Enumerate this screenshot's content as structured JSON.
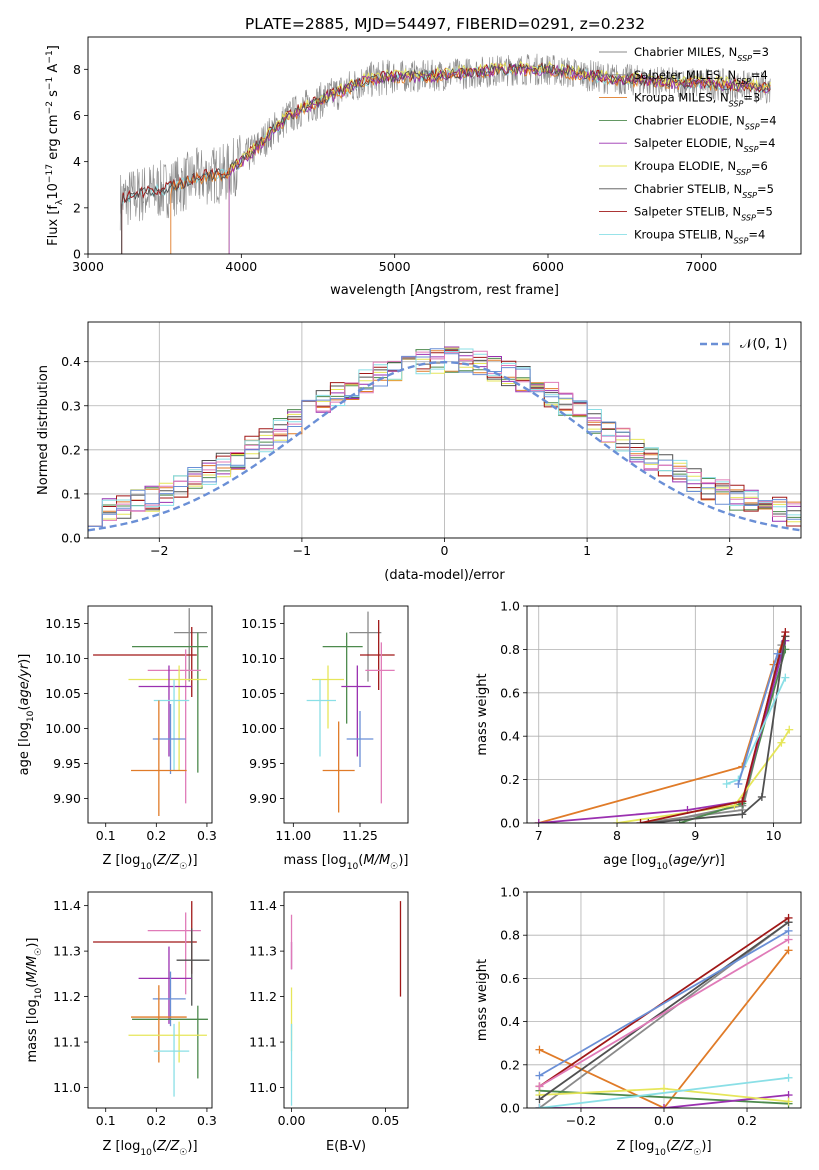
{
  "figure_title": "PLATE=2885, MJD=54497, FIBERID=0291, z=0.232",
  "colors": {
    "Chabrier MILES": "#8a8a8a",
    "Salpeter MILES": "#8a8a8a",
    "Kroupa MILES": "#e07b28",
    "Chabrier ELODIE": "#4d8a4d",
    "Salpeter ELODIE": "#9a30b0",
    "Kroupa ELODIE": "#e6e65a",
    "Chabrier STELIB": "#505050",
    "Salpeter STELIB": "#a01818",
    "Kroupa STELIB": "#8adfe6",
    "normal_curve": "#6a8fd6",
    "blue": "#6a8fd6",
    "pink": "#e07bb8"
  },
  "chart_data": [
    {
      "id": "spectrum",
      "type": "line",
      "title": "PLATE=2885, MJD=54497, FIBERID=0291, z=0.232",
      "xlabel": "wavelength [Angstrom, rest frame]",
      "ylabel": "Flux [f_λ 10^-17 erg cm^-2 s^-1 A^-1]",
      "xlim": [
        3000,
        7650
      ],
      "ylim": [
        0,
        9.4
      ],
      "xticks": [
        "3000",
        "4000",
        "5000",
        "6000",
        "7000"
      ],
      "yticks": [
        "0",
        "2",
        "4",
        "6",
        "8"
      ],
      "legend_position": "top-right",
      "legend": [
        {
          "text": "Chabrier MILES, N_SSP=3"
        },
        {
          "text": "Salpeter MILES, N_SSP=4"
        },
        {
          "text": "Kroupa MILES, N_SSP=3"
        },
        {
          "text": "Chabrier ELODIE, N_SSP=4"
        },
        {
          "text": "Salpeter ELODIE, N_SSP=4"
        },
        {
          "text": "Kroupa ELODIE, N_SSP=6"
        },
        {
          "text": "Chabrier STELIB, N_SSP=5"
        },
        {
          "text": "Salpeter STELIB, N_SSP=5"
        },
        {
          "text": "Kroupa STELIB, N_SSP=4"
        }
      ],
      "continuum": {
        "x": [
          3200,
          3300,
          3400,
          3500,
          3600,
          3700,
          3800,
          3900,
          4000,
          4100,
          4200,
          4300,
          4400,
          4500,
          4600,
          4700,
          4800,
          4900,
          5000,
          5200,
          5400,
          5600,
          5800,
          6000,
          6200,
          6400,
          6600,
          6800,
          7000,
          7200,
          7400,
          7600
        ],
        "y": [
          2.3,
          2.5,
          2.7,
          2.8,
          3.0,
          3.3,
          3.4,
          3.5,
          4.0,
          4.6,
          5.3,
          5.9,
          6.3,
          6.6,
          6.9,
          7.2,
          7.5,
          7.6,
          7.7,
          7.7,
          7.8,
          7.9,
          8.0,
          8.0,
          7.8,
          7.6,
          7.5,
          7.4,
          7.4,
          7.3,
          7.2,
          7.2
        ]
      }
    },
    {
      "id": "residuals",
      "type": "histogram",
      "xlabel": "(data-model)/error",
      "ylabel": "Normed distribution",
      "xlim": [
        -2.5,
        2.5
      ],
      "ylim": [
        0,
        0.49
      ],
      "xticks": [
        "−2",
        "−1",
        "0",
        "1",
        "2"
      ],
      "yticks": [
        "0.0",
        "0.1",
        "0.2",
        "0.3",
        "0.4"
      ],
      "grid": true,
      "legend_position": "top-right",
      "legend": [
        {
          "text": "𝒩(0, 1)"
        }
      ],
      "reference": {
        "type": "normal",
        "mean": 0,
        "sigma": 1
      }
    },
    {
      "id": "age_vs_Z",
      "type": "errorbar",
      "xlabel": "Z [log10(Z/Z☉)]",
      "ylabel": "age [log10(age/yr)]",
      "xlim": [
        0.065,
        0.31
      ],
      "ylim": [
        9.865,
        10.175
      ],
      "xticks": [
        "0.1",
        "0.2",
        "0.3"
      ],
      "yticks": [
        "9.90",
        "9.95",
        "10.00",
        "10.05",
        "10.10",
        "10.15"
      ],
      "points": [
        {
          "series": "Chabrier MILES",
          "x": 0.265,
          "y": 10.137,
          "xerr": [
            0.03,
            0.035
          ],
          "yerr": [
            0.07,
            0.035
          ]
        },
        {
          "series": "Salpeter STELIB",
          "x": 0.27,
          "y": 10.105,
          "xerr": [
            0.195,
            0.01
          ],
          "yerr": [
            0.06,
            0.04
          ]
        },
        {
          "series": "Chabrier ELODIE",
          "x": 0.282,
          "y": 10.117,
          "xerr": [
            0.13,
            0.02
          ],
          "yerr": [
            0.18,
            0.02
          ]
        },
        {
          "series": "pink",
          "x": 0.258,
          "y": 10.083,
          "xerr": [
            0.075,
            0.03
          ],
          "yerr": [
            0.19,
            0.03
          ]
        },
        {
          "series": "Kroupa ELODIE",
          "x": 0.245,
          "y": 10.07,
          "xerr": [
            0.1,
            0.055
          ],
          "yerr": [
            0.13,
            0.02
          ]
        },
        {
          "series": "Salpeter ELODIE",
          "x": 0.225,
          "y": 10.06,
          "xerr": [
            0.06,
            0.045
          ],
          "yerr": [
            0.1,
            0.03
          ]
        },
        {
          "series": "Kroupa STELIB",
          "x": 0.235,
          "y": 10.04,
          "xerr": [
            0.04,
            0.03
          ],
          "yerr": [
            0.1,
            0.03
          ]
        },
        {
          "series": "blue",
          "x": 0.228,
          "y": 9.985,
          "xerr": [
            0.035,
            0.03
          ],
          "yerr": [
            0.05,
            0.05
          ]
        },
        {
          "series": "Kroupa MILES",
          "x": 0.205,
          "y": 9.94,
          "xerr": [
            0.055,
            0.055
          ],
          "yerr": [
            0.065,
            0.1
          ]
        }
      ]
    },
    {
      "id": "age_vs_mass",
      "type": "errorbar",
      "xlabel": "mass [log10(M/M☉)]",
      "ylabel": "",
      "xlim": [
        10.965,
        11.43
      ],
      "ylim": [
        9.865,
        10.175
      ],
      "xticks": [
        "11.00",
        "11.25"
      ],
      "yticks": [
        "9.90",
        "9.95",
        "10.00",
        "10.05",
        "10.10",
        "10.15"
      ],
      "points": [
        {
          "series": "Chabrier MILES",
          "x": 11.28,
          "y": 10.137,
          "xerr": [
            0.07,
            0.05
          ],
          "yerr": [
            0.07,
            0.03
          ]
        },
        {
          "series": "Salpeter STELIB",
          "x": 11.32,
          "y": 10.105,
          "xerr": [
            0.07,
            0.06
          ],
          "yerr": [
            0.05,
            0.05
          ]
        },
        {
          "series": "Chabrier ELODIE",
          "x": 11.2,
          "y": 10.117,
          "xerr": [
            0.09,
            0.06
          ],
          "yerr": [
            0.11,
            0.02
          ]
        },
        {
          "series": "pink",
          "x": 11.33,
          "y": 10.083,
          "xerr": [
            0.06,
            0.05
          ],
          "yerr": [
            0.19,
            0.04
          ]
        },
        {
          "series": "Kroupa ELODIE",
          "x": 11.13,
          "y": 10.07,
          "xerr": [
            0.06,
            0.06
          ],
          "yerr": [
            0.07,
            0.02
          ]
        },
        {
          "series": "Salpeter ELODIE",
          "x": 11.24,
          "y": 10.06,
          "xerr": [
            0.06,
            0.05
          ],
          "yerr": [
            0.1,
            0.03
          ]
        },
        {
          "series": "Kroupa STELIB",
          "x": 11.1,
          "y": 10.04,
          "xerr": [
            0.05,
            0.06
          ],
          "yerr": [
            0.08,
            0.03
          ]
        },
        {
          "series": "blue",
          "x": 11.25,
          "y": 9.985,
          "xerr": [
            0.05,
            0.05
          ],
          "yerr": [
            0.04,
            0.04
          ]
        },
        {
          "series": "Kroupa MILES",
          "x": 11.17,
          "y": 9.94,
          "xerr": [
            0.06,
            0.06
          ],
          "yerr": [
            0.06,
            0.07
          ]
        }
      ]
    },
    {
      "id": "mass_weight_vs_age",
      "type": "line",
      "xlabel": "age [log10(age/yr)]",
      "ylabel": "mass weight",
      "xlim": [
        6.85,
        10.35
      ],
      "ylim": [
        0,
        1
      ],
      "xticks": [
        "7",
        "8",
        "9",
        "10"
      ],
      "yticks": [
        "0.0",
        "0.2",
        "0.4",
        "0.6",
        "0.8",
        "1.0"
      ],
      "grid": true,
      "series": [
        {
          "name": "Chabrier MILES",
          "x": [
            8.3,
            9.6,
            10.15
          ],
          "y": [
            0.0,
            0.06,
            0.86
          ]
        },
        {
          "name": "Salpeter MILES",
          "x": [
            8.5,
            9.6,
            10.1
          ],
          "y": [
            0.0,
            0.08,
            0.82
          ]
        },
        {
          "name": "Kroupa MILES",
          "x": [
            7.0,
            9.6,
            10.0,
            10.15
          ],
          "y": [
            0.0,
            0.26,
            0.73,
            0.86
          ]
        },
        {
          "name": "Chabrier ELODIE",
          "x": [
            8.8,
            9.6,
            10.15
          ],
          "y": [
            0.0,
            0.09,
            0.8
          ]
        },
        {
          "name": "Salpeter ELODIE",
          "x": [
            7.0,
            8.9,
            9.6,
            10.15
          ],
          "y": [
            0.0,
            0.06,
            0.1,
            0.84
          ]
        },
        {
          "name": "Kroupa ELODIE",
          "x": [
            8.0,
            9.5,
            10.1,
            10.2
          ],
          "y": [
            0.0,
            0.08,
            0.37,
            0.43
          ]
        },
        {
          "name": "Chabrier STELIB",
          "x": [
            8.4,
            9.6,
            9.85,
            10.15
          ],
          "y": [
            0.0,
            0.04,
            0.12,
            0.86
          ]
        },
        {
          "name": "Salpeter STELIB",
          "x": [
            8.3,
            9.6,
            10.15
          ],
          "y": [
            0.0,
            0.1,
            0.88
          ]
        },
        {
          "name": "Kroupa STELIB",
          "x": [
            9.4,
            9.55,
            10.15
          ],
          "y": [
            0.18,
            0.2,
            0.67
          ]
        },
        {
          "name": "blue",
          "x": [
            9.55,
            10.05
          ],
          "y": [
            0.18,
            0.78
          ]
        }
      ]
    },
    {
      "id": "mass_vs_Z",
      "type": "errorbar",
      "xlabel": "Z [log10(Z/Z☉)]",
      "ylabel": "mass [log10(M/M☉)]",
      "xlim": [
        0.065,
        0.31
      ],
      "ylim": [
        10.955,
        11.43
      ],
      "xticks": [
        "0.1",
        "0.2",
        "0.3"
      ],
      "yticks": [
        "11.0",
        "11.1",
        "11.2",
        "11.3",
        "11.4"
      ],
      "points": [
        {
          "series": "Salpeter STELIB",
          "x": 0.27,
          "y": 11.32,
          "xerr": [
            0.195,
            0.01
          ],
          "yerr": [
            0.07,
            0.09
          ]
        },
        {
          "series": "pink",
          "x": 0.258,
          "y": 11.345,
          "xerr": [
            0.075,
            0.03
          ],
          "yerr": [
            0.14,
            0.04
          ]
        },
        {
          "series": "Chabrier STELIB",
          "x": 0.27,
          "y": 11.28,
          "xerr": [
            0.03,
            0.035
          ],
          "yerr": [
            0.1,
            0.07
          ]
        },
        {
          "series": "Salpeter ELODIE",
          "x": 0.225,
          "y": 11.24,
          "xerr": [
            0.06,
            0.045
          ],
          "yerr": [
            0.1,
            0.07
          ]
        },
        {
          "series": "blue",
          "x": 0.228,
          "y": 11.195,
          "xerr": [
            0.035,
            0.03
          ],
          "yerr": [
            0.06,
            0.06
          ]
        },
        {
          "series": "Chabrier ELODIE",
          "x": 0.282,
          "y": 11.15,
          "xerr": [
            0.13,
            0.02
          ],
          "yerr": [
            0.13,
            0.03
          ]
        },
        {
          "series": "Kroupa MILES",
          "x": 0.205,
          "y": 11.155,
          "xerr": [
            0.055,
            0.055
          ],
          "yerr": [
            0.1,
            0.07
          ]
        },
        {
          "series": "Kroupa ELODIE",
          "x": 0.245,
          "y": 11.115,
          "xerr": [
            0.1,
            0.055
          ],
          "yerr": [
            0.06,
            0.03
          ]
        },
        {
          "series": "Kroupa STELIB",
          "x": 0.235,
          "y": 11.08,
          "xerr": [
            0.04,
            0.03
          ],
          "yerr": [
            0.1,
            0.06
          ]
        }
      ]
    },
    {
      "id": "mass_vs_ebv",
      "type": "errorbar",
      "xlabel": "E(B-V)",
      "ylabel": "",
      "xlim": [
        -0.004,
        0.062
      ],
      "ylim": [
        10.955,
        11.43
      ],
      "xticks": [
        "0.00",
        "0.05"
      ],
      "yticks": [
        "11.0",
        "11.1",
        "11.2",
        "11.3",
        "11.4"
      ],
      "points": [
        {
          "series": "Salpeter STELIB",
          "x": 0.058,
          "y": 11.25,
          "xerr": [
            0,
            0
          ],
          "yerr": [
            0.05,
            0.16
          ]
        },
        {
          "series": "Salpeter ELODIE",
          "x": 0.0,
          "y": 11.28,
          "xerr": [
            0,
            0
          ],
          "yerr": [
            0.02,
            0.04
          ]
        },
        {
          "series": "pink",
          "x": 0.0,
          "y": 11.32,
          "xerr": [
            0,
            0
          ],
          "yerr": [
            0.06,
            0.06
          ]
        },
        {
          "series": "Kroupa ELODIE",
          "x": 0.0,
          "y": 11.16,
          "xerr": [
            0,
            0
          ],
          "yerr": [
            0.08,
            0.06
          ]
        },
        {
          "series": "Kroupa STELIB",
          "x": 0.0,
          "y": 11.06,
          "xerr": [
            0,
            0
          ],
          "yerr": [
            0.1,
            0.08
          ]
        }
      ]
    },
    {
      "id": "mass_weight_vs_Z",
      "type": "line",
      "xlabel": "Z [log10(Z/Z☉)]",
      "ylabel": "mass weight",
      "xlim": [
        -0.33,
        0.33
      ],
      "ylim": [
        0,
        1
      ],
      "xticks": [
        "−0.2",
        "0.0",
        "0.2"
      ],
      "yticks": [
        "0.0",
        "0.2",
        "0.4",
        "0.6",
        "0.8",
        "1.0"
      ],
      "grid": true,
      "series": [
        {
          "name": "Chabrier MILES",
          "x": [
            -0.3,
            0.3
          ],
          "y": [
            0.0,
            0.86
          ]
        },
        {
          "name": "Kroupa MILES",
          "x": [
            -0.3,
            0.0,
            0.3
          ],
          "y": [
            0.27,
            0.0,
            0.73
          ]
        },
        {
          "name": "Chabrier ELODIE",
          "x": [
            -0.3,
            0.3
          ],
          "y": [
            0.08,
            0.02
          ]
        },
        {
          "name": "Salpeter ELODIE",
          "x": [
            -0.3,
            0.0,
            0.3
          ],
          "y": [
            0.0,
            0.0,
            0.06
          ]
        },
        {
          "name": "Kroupa ELODIE",
          "x": [
            -0.3,
            0.0,
            0.3
          ],
          "y": [
            0.06,
            0.09,
            0.03
          ]
        },
        {
          "name": "Chabrier STELIB",
          "x": [
            -0.3,
            0.3
          ],
          "y": [
            0.04,
            0.86
          ]
        },
        {
          "name": "Salpeter STELIB",
          "x": [
            -0.3,
            0.3
          ],
          "y": [
            0.1,
            0.88
          ]
        },
        {
          "name": "Kroupa STELIB",
          "x": [
            -0.3,
            0.3
          ],
          "y": [
            0.0,
            0.14
          ]
        },
        {
          "name": "pink",
          "x": [
            -0.3,
            0.3
          ],
          "y": [
            0.1,
            0.78
          ]
        },
        {
          "name": "blue",
          "x": [
            -0.3,
            0.3
          ],
          "y": [
            0.15,
            0.82
          ]
        }
      ]
    }
  ]
}
